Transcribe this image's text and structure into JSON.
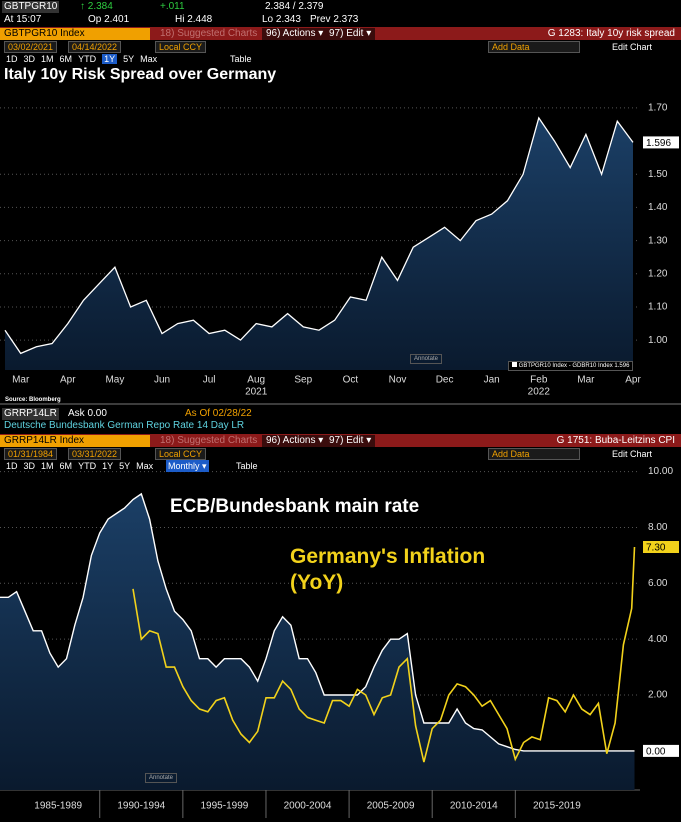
{
  "top_panel": {
    "ticker": "GBTPGR10",
    "last": "↑ 2.384",
    "change": "+.011",
    "bid_ask": "2.384 / 2.379",
    "time": "At 15:07",
    "open": "Op 2.401",
    "high": "Hi 2.448",
    "low": "Lo 2.343",
    "prev": "Prev 2.373",
    "security": "GBTPGR10 Index",
    "suggested": "18) Suggested Charts",
    "actions": "96) Actions ▾",
    "edit": "97) Edit ▾",
    "chart_id": "G 1283: Italy 10y risk spread",
    "start_date": "03/02/2021",
    "end_date": "04/14/2022",
    "currency": "Local CCY",
    "add_data": "Add Data",
    "edit_chart": "Edit Chart",
    "ranges": [
      "1D",
      "3D",
      "1M",
      "6M",
      "YTD",
      "1Y",
      "5Y",
      "Max"
    ],
    "selected_range_index": 5,
    "table": "Table",
    "annotate": "Annotate",
    "source": "Source: Bloomberg"
  },
  "bottom_panel": {
    "ticker": "GRRP14LR",
    "ask": "Ask 0.00",
    "as_of": "As Of 02/28/22",
    "description": "Deutsche Bundesbank German Repo Rate 14 Day LR",
    "security": "GRRP14LR Index",
    "suggested": "18) Suggested Charts",
    "actions": "96) Actions ▾",
    "edit": "97) Edit ▾",
    "chart_id": "G 1751: Buba-Leitzins CPI",
    "start_date": "01/31/1984",
    "end_date": "03/31/2022",
    "currency": "Local CCY",
    "frequency": "Monthly ▾",
    "add_data": "Add Data",
    "edit_chart": "Edit Chart",
    "ranges": [
      "1D",
      "3D",
      "1M",
      "6M",
      "YTD",
      "1Y",
      "5Y",
      "Max"
    ],
    "table": "Table",
    "annotate": "Annotate"
  },
  "chart_data": [
    {
      "type": "area",
      "title": "Italy 10y Risk Spread over Germany",
      "categories": [
        null,
        "Mar",
        null,
        null,
        "Apr",
        null,
        null,
        "May",
        null,
        null,
        "Jun",
        null,
        null,
        "Jul",
        null,
        null,
        "Aug",
        null,
        null,
        "Sep",
        null,
        null,
        "Oct",
        null,
        null,
        "Nov",
        null,
        null,
        "Dec",
        null,
        null,
        "Jan",
        null,
        null,
        "Feb",
        null,
        null,
        "Mar",
        null,
        null,
        "Apr"
      ],
      "x_group_labels": [
        "2021",
        "2022"
      ],
      "series": [
        {
          "name": "GBTPGR10 Index - GDBR10 Index",
          "color": "#ffffff",
          "values": [
            1.03,
            0.96,
            0.98,
            0.99,
            1.05,
            1.12,
            1.17,
            1.22,
            1.1,
            1.12,
            1.02,
            1.05,
            1.06,
            1.02,
            1.03,
            1.0,
            1.05,
            1.04,
            1.08,
            1.04,
            1.03,
            1.06,
            1.13,
            1.12,
            1.25,
            1.18,
            1.28,
            1.31,
            1.34,
            1.3,
            1.36,
            1.38,
            1.42,
            1.5,
            1.67,
            1.6,
            1.52,
            1.62,
            1.5,
            1.66,
            1.596
          ]
        }
      ],
      "ylim": [
        0.91,
        1.76
      ],
      "yticks": [
        {
          "value": 1,
          "label": "1.00"
        },
        {
          "value": 1.1,
          "label": "1.10"
        },
        {
          "value": 1.2,
          "label": "1.20"
        },
        {
          "value": 1.3,
          "label": "1.30"
        },
        {
          "value": 1.4,
          "label": "1.40"
        },
        {
          "value": 1.5,
          "label": "1.50"
        },
        {
          "value": 1.7,
          "label": "1.70"
        }
      ],
      "grid": true
    },
    {
      "type": "line",
      "x": [
        1984,
        1984.5,
        1985,
        1985.5,
        1986,
        1986.5,
        1987,
        1987.5,
        1988,
        1988.5,
        1989,
        1989.5,
        1990,
        1990.5,
        1991,
        1991.5,
        1992,
        1992.5,
        1993,
        1993.5,
        1994,
        1994.5,
        1995,
        1995.5,
        1996,
        1996.5,
        1997,
        1997.5,
        1998,
        1998.5,
        1999,
        1999.5,
        2000,
        2000.5,
        2001,
        2001.5,
        2002,
        2002.5,
        2003,
        2003.5,
        2004,
        2004.5,
        2005,
        2005.5,
        2006,
        2006.5,
        2007,
        2007.5,
        2008,
        2008.5,
        2009,
        2009.5,
        2010,
        2010.5,
        2011,
        2011.5,
        2012,
        2012.5,
        2013,
        2013.5,
        2014,
        2014.5,
        2015,
        2015.5,
        2016,
        2016.5,
        2017,
        2017.5,
        2018,
        2018.5,
        2019,
        2019.5,
        2020,
        2020.5,
        2021,
        2021.5,
        2022,
        2022.17
      ],
      "series": [
        {
          "name": "ECB/Bundesbank main rate",
          "color": "#ffffff",
          "area": true,
          "values": [
            5.5,
            5.5,
            5.7,
            5.0,
            4.3,
            4.3,
            3.5,
            3.0,
            3.3,
            4.5,
            5.5,
            7.0,
            7.8,
            8.3,
            8.5,
            8.7,
            9.0,
            9.2,
            8.3,
            6.8,
            5.8,
            5.0,
            4.7,
            4.3,
            3.3,
            3.3,
            3.0,
            3.3,
            3.3,
            3.3,
            3.0,
            2.5,
            3.3,
            4.3,
            4.8,
            4.5,
            3.3,
            3.3,
            2.8,
            2.0,
            2.0,
            2.0,
            2.0,
            2.0,
            2.3,
            3.0,
            3.6,
            4.0,
            4.0,
            4.2,
            2.0,
            1.0,
            1.0,
            1.0,
            1.0,
            1.5,
            1.0,
            0.8,
            0.75,
            0.5,
            0.25,
            0.15,
            0.05,
            0,
            0,
            0,
            0,
            0,
            0,
            0,
            0,
            0,
            0,
            0,
            0,
            0,
            0,
            0
          ],
          "value_labels": [
            null,
            null,
            null,
            null,
            null,
            null,
            null,
            null,
            null,
            null,
            null,
            null,
            null,
            null,
            null,
            null,
            null,
            null,
            null,
            null,
            null,
            null,
            null,
            null,
            null,
            null,
            null,
            null,
            null,
            null,
            null,
            null,
            null,
            null,
            null,
            null,
            null,
            null,
            null,
            null,
            null,
            null,
            null,
            null,
            null,
            null,
            null,
            null,
            null,
            null,
            null,
            null,
            null,
            null,
            null,
            null,
            null,
            null,
            null,
            null,
            null,
            null,
            null,
            null,
            null,
            null,
            null,
            null,
            null,
            null,
            null,
            null,
            null,
            null,
            null,
            null,
            null,
            "0.00"
          ]
        },
        {
          "name": "Germany's Inflation (YoY)",
          "color": "#f2d21b",
          "values": [
            null,
            null,
            null,
            null,
            null,
            null,
            null,
            null,
            null,
            null,
            null,
            null,
            null,
            null,
            null,
            null,
            5.8,
            4.0,
            4.3,
            4.2,
            3.0,
            3.0,
            2.3,
            1.8,
            1.5,
            1.4,
            1.8,
            1.9,
            1.1,
            0.6,
            0.3,
            0.7,
            1.9,
            1.9,
            2.5,
            2.2,
            1.5,
            1.2,
            1.1,
            1.0,
            1.8,
            1.8,
            1.6,
            2.2,
            2.0,
            1.3,
            1.9,
            2.0,
            3.0,
            3.3,
            0.9,
            -0.4,
            0.8,
            1.1,
            2.0,
            2.4,
            2.3,
            2.0,
            1.6,
            1.8,
            1.3,
            0.8,
            -0.3,
            0.3,
            0.5,
            0.4,
            1.9,
            1.8,
            1.4,
            2.0,
            1.5,
            1.3,
            1.7,
            -0.1,
            1.0,
            3.8,
            5.1,
            7.3
          ],
          "value_labels": [
            null,
            null,
            null,
            null,
            null,
            null,
            null,
            null,
            null,
            null,
            null,
            null,
            null,
            null,
            null,
            null,
            null,
            null,
            null,
            null,
            null,
            null,
            null,
            null,
            null,
            null,
            null,
            null,
            null,
            null,
            null,
            null,
            null,
            null,
            null,
            null,
            null,
            null,
            null,
            null,
            null,
            null,
            null,
            null,
            null,
            null,
            null,
            null,
            null,
            null,
            null,
            null,
            null,
            null,
            null,
            null,
            null,
            null,
            null,
            null,
            null,
            null,
            null,
            null,
            null,
            null,
            null,
            null,
            null,
            null,
            null,
            null,
            null,
            null,
            null,
            null,
            null,
            "7.30"
          ]
        }
      ],
      "xlim": [
        1984,
        2022.5
      ],
      "xticks": [
        {
          "value": 1987.5,
          "label": "1985-1989"
        },
        {
          "value": 1992.5,
          "label": "1990-1994"
        },
        {
          "value": 1997.5,
          "label": "1995-1999"
        },
        {
          "value": 2002.5,
          "label": "2000-2004"
        },
        {
          "value": 2007.5,
          "label": "2005-2009"
        },
        {
          "value": 2012.5,
          "label": "2010-2014"
        },
        {
          "value": 2017.5,
          "label": "2015-2019"
        }
      ],
      "ylim": [
        -1.4,
        10.2
      ],
      "yticks": [
        {
          "value": 2,
          "label": "2.00"
        },
        {
          "value": 4,
          "label": "4.00"
        },
        {
          "value": 6,
          "label": "6.00"
        },
        {
          "value": 8,
          "label": "8.00"
        },
        {
          "value": 10,
          "label": "10.00"
        }
      ],
      "grid": true
    }
  ]
}
